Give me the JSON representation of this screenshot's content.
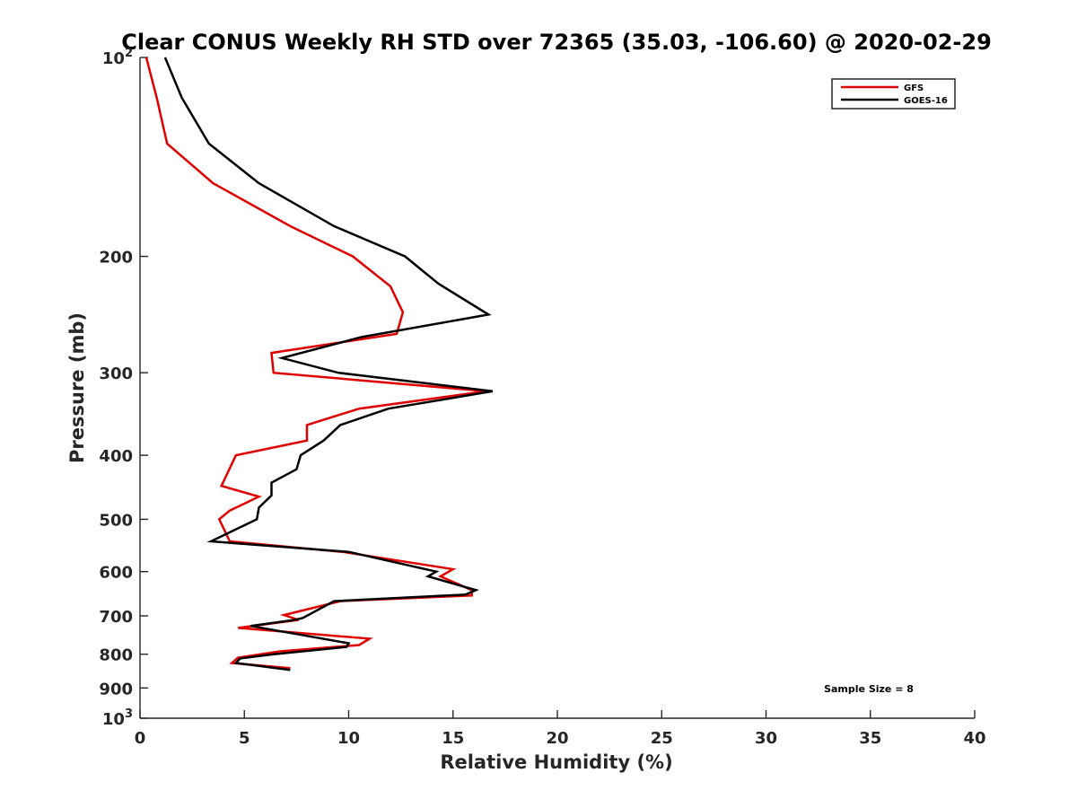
{
  "chart_data": {
    "type": "line",
    "title": "Clear CONUS Weekly RH STD over 72365 (35.03, -106.60) @ 2020-02-29",
    "xlabel": "Relative Humidity (%)",
    "ylabel": "Pressure (mb)",
    "xlim": [
      0,
      40
    ],
    "ylim": [
      100,
      1000
    ],
    "y_scale": "log",
    "y_reversed": true,
    "x_ticks": [
      "0",
      "5",
      "10",
      "15",
      "20",
      "25",
      "30",
      "35",
      "40"
    ],
    "y_ticks": [
      {
        "value": 100,
        "base": "10",
        "exp": "2"
      },
      {
        "value": 200,
        "label": "200"
      },
      {
        "value": 300,
        "label": "300"
      },
      {
        "value": 400,
        "label": "400"
      },
      {
        "value": 500,
        "label": "500"
      },
      {
        "value": 600,
        "label": "600"
      },
      {
        "value": 700,
        "label": "700"
      },
      {
        "value": 800,
        "label": "800"
      },
      {
        "value": 900,
        "label": "900"
      },
      {
        "value": 1000,
        "base": "10",
        "exp": "3"
      }
    ],
    "legend_position": "top-right",
    "annotation": "Sample Size = 8",
    "series": [
      {
        "name": "GFS",
        "color": "#e00000",
        "points": [
          [
            0.3,
            100
          ],
          [
            0.8,
            115
          ],
          [
            1.3,
            135
          ],
          [
            3.5,
            155
          ],
          [
            7.2,
            180
          ],
          [
            10.2,
            200
          ],
          [
            12.0,
            222
          ],
          [
            12.6,
            243
          ],
          [
            12.3,
            262
          ],
          [
            6.3,
            280
          ],
          [
            6.4,
            300
          ],
          [
            16.6,
            320
          ],
          [
            10.5,
            340
          ],
          [
            8.0,
            360
          ],
          [
            8.0,
            380
          ],
          [
            4.6,
            400
          ],
          [
            3.9,
            445
          ],
          [
            5.7,
            462
          ],
          [
            4.3,
            485
          ],
          [
            3.8,
            500
          ],
          [
            4.3,
            540
          ],
          [
            9.7,
            560
          ],
          [
            15.0,
            595
          ],
          [
            14.4,
            610
          ],
          [
            15.9,
            640
          ],
          [
            15.9,
            652
          ],
          [
            9.6,
            665
          ],
          [
            6.9,
            698
          ],
          [
            7.6,
            710
          ],
          [
            4.7,
            730
          ],
          [
            11.0,
            758
          ],
          [
            10.5,
            775
          ],
          [
            6.7,
            792
          ],
          [
            4.7,
            810
          ],
          [
            4.4,
            825
          ],
          [
            7.2,
            840
          ]
        ]
      },
      {
        "name": "GOES-16",
        "color": "#000000",
        "points": [
          [
            1.2,
            100
          ],
          [
            2.0,
            115
          ],
          [
            3.3,
            135
          ],
          [
            5.7,
            155
          ],
          [
            9.3,
            180
          ],
          [
            12.7,
            200
          ],
          [
            14.3,
            220
          ],
          [
            16.7,
            245
          ],
          [
            10.6,
            265
          ],
          [
            6.8,
            285
          ],
          [
            9.5,
            300
          ],
          [
            16.9,
            320
          ],
          [
            11.9,
            340
          ],
          [
            9.6,
            360
          ],
          [
            8.8,
            380
          ],
          [
            7.7,
            400
          ],
          [
            7.5,
            420
          ],
          [
            6.3,
            440
          ],
          [
            6.3,
            460
          ],
          [
            5.7,
            480
          ],
          [
            5.6,
            500
          ],
          [
            3.4,
            540
          ],
          [
            10.0,
            560
          ],
          [
            14.2,
            600
          ],
          [
            13.8,
            610
          ],
          [
            16.1,
            640
          ],
          [
            15.6,
            650
          ],
          [
            9.3,
            665
          ],
          [
            7.8,
            705
          ],
          [
            7.4,
            710
          ],
          [
            5.3,
            725
          ],
          [
            10.0,
            770
          ],
          [
            9.9,
            780
          ],
          [
            6.4,
            800
          ],
          [
            4.8,
            812
          ],
          [
            4.6,
            825
          ],
          [
            7.2,
            845
          ]
        ]
      }
    ]
  }
}
